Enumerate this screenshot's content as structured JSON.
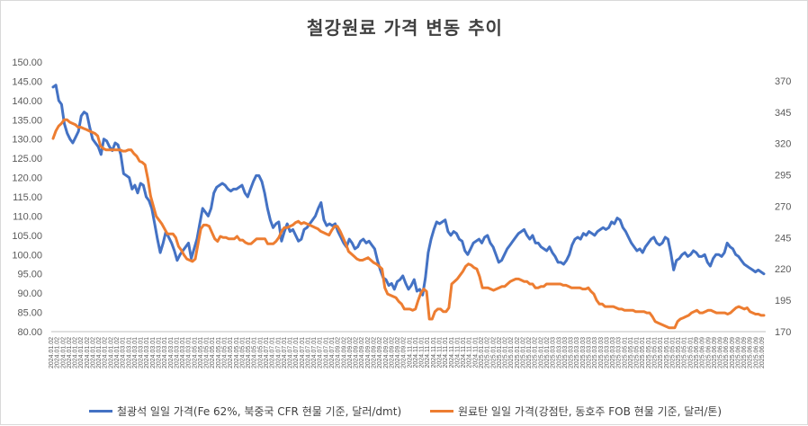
{
  "chart_data": {
    "type": "line",
    "title": "철강원료 가격 변동 추이",
    "left_axis": {
      "range": [
        80,
        150
      ],
      "ticks": [
        "80.00",
        "85.00",
        "90.00",
        "95.00",
        "100.00",
        "105.00",
        "110.00",
        "115.00",
        "120.00",
        "125.00",
        "130.00",
        "135.00",
        "140.00",
        "145.00",
        "150.00"
      ]
    },
    "right_axis": {
      "range": [
        170,
        385
      ],
      "ticks": [
        "170",
        "195",
        "220",
        "245",
        "270",
        "295",
        "320",
        "345",
        "370"
      ]
    },
    "x_axis": {
      "start": "2024.01.02",
      "end": "2025.06.09",
      "tick_labels": [
        "2024.01.02",
        "2024.03.01",
        "2024.05.01",
        "2024.07.01",
        "2024.09.02",
        "2024.11.01",
        "2025.01.02",
        "2025.03.03",
        "2025.05.01",
        "2025.06.09"
      ]
    },
    "series": [
      {
        "name": "철광석 일일 가격(Fe 62%, 북중국 CFR 현물 기준, 달러/dmt)",
        "axis": "left",
        "color": "#4472c4",
        "values": [
          143.5,
          144.0,
          140.0,
          139.0,
          134.0,
          131.5,
          130.0,
          129.0,
          130.5,
          132.0,
          136.0,
          137.0,
          136.5,
          133.0,
          130.0,
          129.0,
          128.0,
          126.0,
          130.0,
          129.5,
          128.0,
          127.0,
          129.0,
          128.5,
          126.0,
          121.0,
          120.5,
          120.0,
          117.0,
          118.0,
          116.0,
          118.5,
          118.0,
          115.0,
          114.0,
          112.0,
          108.0,
          104.0,
          100.5,
          103.0,
          106.0,
          104.5,
          103.0,
          101.0,
          98.5,
          100.0,
          101.0,
          102.0,
          103.0,
          99.0,
          101.5,
          104.0,
          108.0,
          112.0,
          111.0,
          110.0,
          112.0,
          116.0,
          117.5,
          118.0,
          118.5,
          118.0,
          117.0,
          116.5,
          117.0,
          117.0,
          117.5,
          118.0,
          116.0,
          115.0,
          117.0,
          119.0,
          120.5,
          120.5,
          119.0,
          116.0,
          112.0,
          109.0,
          107.0,
          108.0,
          108.5,
          103.5,
          106.0,
          108.0,
          106.0,
          106.5,
          105.0,
          103.5,
          104.0,
          106.5,
          107.0,
          108.0,
          109.0,
          110.0,
          112.0,
          113.5,
          109.0,
          107.5,
          108.0,
          107.5,
          108.0,
          106.0,
          104.5,
          103.0,
          102.0,
          104.0,
          103.0,
          101.5,
          102.0,
          103.5,
          104.0,
          103.0,
          103.5,
          102.5,
          101.5,
          98.5,
          96.0,
          94.0,
          93.5,
          92.0,
          92.5,
          91.0,
          93.0,
          93.5,
          94.5,
          92.5,
          91.0,
          92.0,
          93.5,
          90.5,
          91.0,
          89.5,
          94.0,
          100.5,
          104.0,
          106.5,
          108.5,
          108.0,
          108.5,
          109.0,
          106.0,
          105.0,
          106.0,
          105.5,
          104.0,
          103.5,
          101.0,
          100.0,
          101.5,
          103.0,
          103.5,
          104.0,
          103.0,
          104.5,
          105.0,
          103.0,
          102.0,
          100.0,
          98.0,
          98.5,
          100.0,
          101.5,
          102.5,
          103.5,
          104.5,
          105.5,
          106.0,
          106.5,
          105.0,
          104.0,
          105.0,
          103.0,
          103.0,
          102.0,
          101.5,
          101.0,
          102.0,
          100.5,
          99.5,
          98.0,
          98.0,
          97.5,
          98.5,
          100.0,
          102.5,
          104.0,
          104.5,
          104.0,
          105.5,
          105.0,
          106.0,
          105.5,
          105.0,
          106.0,
          106.5,
          107.0,
          106.5,
          107.0,
          108.5,
          108.0,
          109.5,
          109.0,
          107.0,
          106.0,
          104.5,
          103.0,
          102.0,
          101.0,
          101.5,
          100.5,
          102.0,
          103.0,
          104.0,
          104.5,
          103.0,
          102.5,
          103.0,
          104.5,
          104.0,
          100.5,
          96.0,
          98.5,
          99.0,
          100.0,
          100.5,
          99.5,
          100.0,
          101.0,
          100.5,
          99.5,
          99.5,
          100.0,
          98.0,
          97.0,
          99.0,
          100.0,
          100.0,
          99.5,
          100.5,
          103.0,
          102.0,
          101.5,
          100.0,
          99.5,
          98.5,
          97.5,
          97.0,
          96.5,
          96.0,
          95.5,
          96.0,
          95.5,
          95.0
        ]
      },
      {
        "name": "원료탄 일일 가격(강점탄, 동호주 FOB 현물 기준, 달러/톤)",
        "axis": "right",
        "color": "#ed7d31",
        "values": [
          324,
          330,
          334,
          336,
          339,
          339,
          337,
          336,
          335,
          333,
          333,
          332,
          331,
          330,
          329,
          328,
          326,
          318,
          316,
          315,
          315,
          315,
          315,
          315,
          315,
          314,
          314,
          315,
          315,
          312,
          310,
          306,
          305,
          303,
          292,
          278,
          270,
          262,
          259,
          256,
          252,
          248,
          248,
          248,
          245,
          238,
          235,
          231,
          228,
          227,
          226,
          228,
          240,
          252,
          255,
          255,
          254,
          249,
          244,
          242,
          246,
          245,
          245,
          244,
          244,
          244,
          246,
          243,
          243,
          241,
          240,
          240,
          242,
          244,
          244,
          244,
          244,
          240,
          240,
          240,
          242,
          245,
          250,
          253,
          253,
          254,
          255,
          257,
          258,
          256,
          257,
          256,
          255,
          254,
          253,
          252,
          250,
          249,
          248,
          247,
          251,
          254,
          254,
          250,
          245,
          240,
          234,
          232,
          230,
          228,
          227,
          227,
          228,
          229,
          227,
          225,
          224,
          222,
          220,
          205,
          200,
          199,
          198,
          197,
          194,
          192,
          188,
          188,
          188,
          187,
          188,
          195,
          201,
          204,
          202,
          180,
          180,
          186,
          188,
          188,
          186,
          186,
          189,
          208,
          210,
          212,
          215,
          218,
          222,
          224,
          223,
          221,
          220,
          214,
          205,
          205,
          205,
          204,
          203,
          204,
          205,
          206,
          206,
          208,
          210,
          211,
          212,
          212,
          211,
          210,
          210,
          208,
          208,
          205,
          205,
          206,
          206,
          208,
          208,
          208,
          208,
          208,
          208,
          207,
          207,
          206,
          205,
          205,
          205,
          205,
          204,
          204,
          205,
          202,
          200,
          195,
          192,
          192,
          190,
          190,
          190,
          190,
          189,
          188,
          188,
          187,
          187,
          187,
          187,
          186,
          186,
          186,
          186,
          185,
          185,
          182,
          178,
          177,
          176,
          175,
          174,
          173,
          173,
          173,
          178,
          180,
          181,
          182,
          183,
          185,
          186,
          187,
          185,
          185,
          186,
          187,
          187,
          186,
          185,
          185,
          185,
          185,
          184,
          185,
          187,
          189,
          190,
          189,
          188,
          189,
          186,
          185,
          184,
          184,
          183,
          183
        ]
      }
    ],
    "legend_position": "bottom",
    "grid": false
  }
}
